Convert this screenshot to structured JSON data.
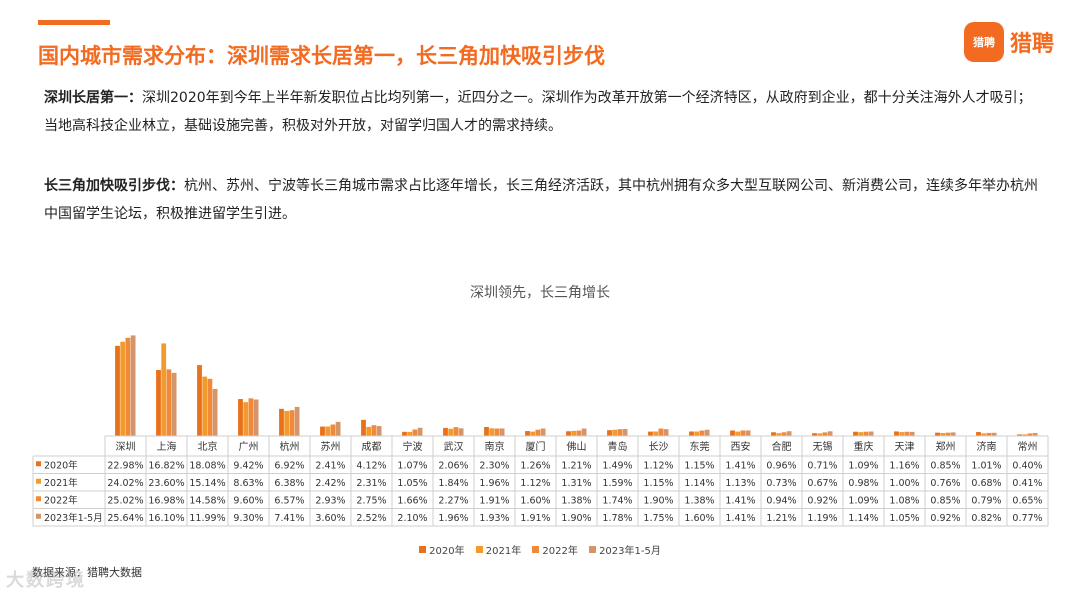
{
  "header": {
    "title": "国内城市需求分布：深圳需求长居第一，长三角加快吸引步伐",
    "logo_badge": "猎聘",
    "logo_text": "猎聘"
  },
  "paragraphs": [
    {
      "lead": "深圳长居第一：",
      "text": "深圳2020年到今年上半年新发职位占比均列第一，近四分之一。深圳作为改革开放第一个经济特区，从政府到企业，都十分关注海外人才吸引；当地高科技企业林立，基础设施完善，积极对外开放，对留学归国人才的需求持续。"
    },
    {
      "lead": "长三角加快吸引步伐：",
      "text": "杭州、苏州、宁波等长三角城市需求占比逐年增长，长三角经济活跃，其中杭州拥有众多大型互联网公司、新消费公司，连续多年举办杭州中国留学生论坛，积极推进留学生引进。"
    }
  ],
  "footnote": "数据来源：猎聘大数据",
  "watermark": "大数跨境",
  "colors": {
    "accent": "#f26b21",
    "series": [
      "#e8711c",
      "#f39a2c",
      "#f08a3a",
      "#d4956a"
    ]
  },
  "chart_data": {
    "type": "bar",
    "title": "深圳领先，长三角增长",
    "categories": [
      "深圳",
      "上海",
      "北京",
      "广州",
      "杭州",
      "苏州",
      "成都",
      "宁波",
      "武汉",
      "南京",
      "厦门",
      "佛山",
      "青岛",
      "长沙",
      "东莞",
      "西安",
      "合肥",
      "无锡",
      "重庆",
      "天津",
      "郑州",
      "济南",
      "常州"
    ],
    "series": [
      {
        "name": "2020年",
        "labels": [
          "22.98%",
          "16.82%",
          "18.08%",
          "9.42%",
          "6.92%",
          "2.41%",
          "4.12%",
          "1.07%",
          "2.06%",
          "2.30%",
          "1.26%",
          "1.21%",
          "1.49%",
          "1.12%",
          "1.15%",
          "1.41%",
          "0.96%",
          "0.71%",
          "1.09%",
          "1.16%",
          "0.85%",
          "1.01%",
          "0.40%"
        ],
        "values": [
          22.98,
          16.82,
          18.08,
          9.42,
          6.92,
          2.41,
          4.12,
          1.07,
          2.06,
          2.3,
          1.26,
          1.21,
          1.49,
          1.12,
          1.15,
          1.41,
          0.96,
          0.71,
          1.09,
          1.16,
          0.85,
          1.01,
          0.4
        ]
      },
      {
        "name": "2021年",
        "labels": [
          "24.02%",
          "23.60%",
          "15.14%",
          "8.63%",
          "6.38%",
          "2.42%",
          "2.31%",
          "1.05%",
          "1.84%",
          "1.96%",
          "1.12%",
          "1.31%",
          "1.59%",
          "1.15%",
          "1.14%",
          "1.13%",
          "0.73%",
          "0.67%",
          "0.98%",
          "1.00%",
          "0.76%",
          "0.68%",
          "0.41%"
        ],
        "values": [
          24.02,
          23.6,
          15.14,
          8.63,
          6.38,
          2.42,
          2.31,
          1.05,
          1.84,
          1.96,
          1.12,
          1.31,
          1.59,
          1.15,
          1.14,
          1.13,
          0.73,
          0.67,
          0.98,
          1.0,
          0.76,
          0.68,
          0.41
        ]
      },
      {
        "name": "2022年",
        "labels": [
          "25.02%",
          "16.98%",
          "14.58%",
          "9.60%",
          "6.57%",
          "2.93%",
          "2.75%",
          "1.66%",
          "2.27%",
          "1.91%",
          "1.60%",
          "1.38%",
          "1.74%",
          "1.90%",
          "1.38%",
          "1.41%",
          "0.94%",
          "0.92%",
          "1.09%",
          "1.08%",
          "0.85%",
          "0.79%",
          "0.65%"
        ],
        "values": [
          25.02,
          16.98,
          14.58,
          9.6,
          6.57,
          2.93,
          2.75,
          1.66,
          2.27,
          1.91,
          1.6,
          1.38,
          1.74,
          1.9,
          1.38,
          1.41,
          0.94,
          0.92,
          1.09,
          1.08,
          0.85,
          0.79,
          0.65
        ]
      },
      {
        "name": "2023年1-5月",
        "labels": [
          "25.64%",
          "16.10%",
          "11.99%",
          "9.30%",
          "7.41%",
          "3.60%",
          "2.52%",
          "2.10%",
          "1.96%",
          "1.93%",
          "1.91%",
          "1.90%",
          "1.78%",
          "1.75%",
          "1.60%",
          "1.41%",
          "1.21%",
          "1.19%",
          "1.14%",
          "1.05%",
          "0.92%",
          "0.82%",
          "0.77%"
        ],
        "values": [
          25.64,
          16.1,
          11.99,
          9.3,
          7.41,
          3.6,
          2.52,
          2.1,
          1.96,
          1.93,
          1.91,
          1.9,
          1.78,
          1.75,
          1.6,
          1.41,
          1.21,
          1.19,
          1.14,
          1.05,
          0.92,
          0.82,
          0.77
        ]
      }
    ],
    "legend_position": "bottom",
    "grid": false
  }
}
